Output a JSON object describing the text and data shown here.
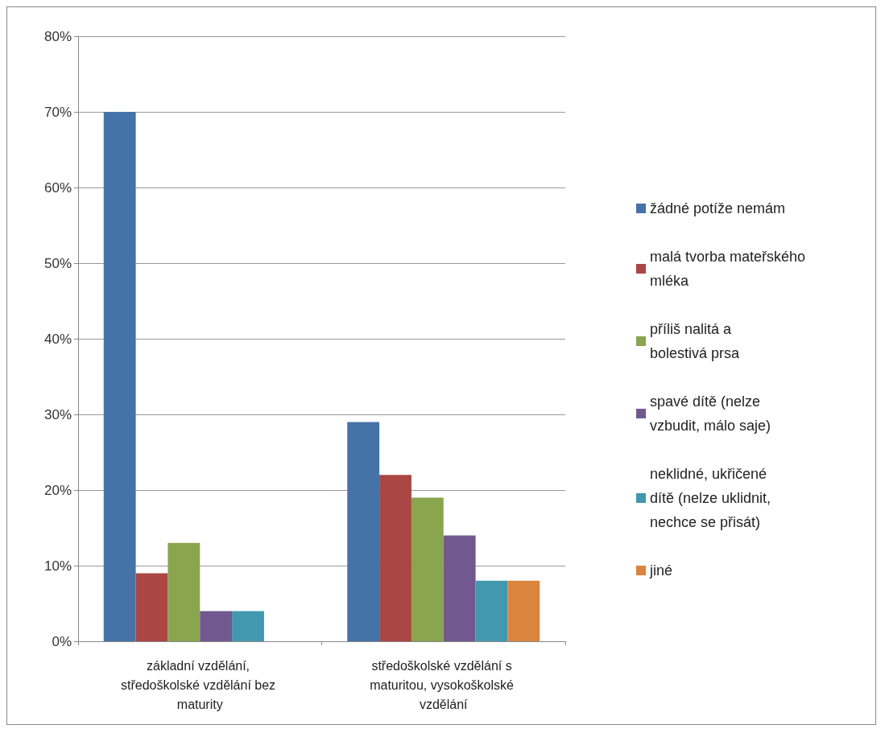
{
  "chart_data": {
    "type": "bar",
    "categories": [
      "základní vzdělání, středoškolské vzdělání bez maturity",
      "středoškolské vzdělání s maturitou, vysokoškolské vzdělání"
    ],
    "series": [
      {
        "name": "žádné potíže nemám",
        "color": "#4572a7",
        "values": [
          70,
          29
        ]
      },
      {
        "name": "malá tvorba mateřského mléka",
        "color": "#aa4643",
        "values": [
          9,
          22
        ]
      },
      {
        "name": "příliš nalitá a bolestivá prsa",
        "color": "#89a54e",
        "values": [
          13,
          19
        ]
      },
      {
        "name": "spavé dítě (nelze vzbudit, málo saje)",
        "color": "#71588f",
        "values": [
          4,
          14
        ]
      },
      {
        "name": "neklidné, ukřičené dítě (nelze uklidnit, nechce se přisát)",
        "color": "#4198af",
        "values": [
          4,
          8
        ]
      },
      {
        "name": "jiné",
        "color": "#db843d",
        "values": [
          null,
          8
        ]
      }
    ],
    "ylim": [
      0,
      80
    ],
    "yticks": [
      {
        "value": 0,
        "label": "0%"
      },
      {
        "value": 10,
        "label": "10%"
      },
      {
        "value": 20,
        "label": "20%"
      },
      {
        "value": 30,
        "label": "30%"
      },
      {
        "value": 40,
        "label": "40%"
      },
      {
        "value": 50,
        "label": "50%"
      },
      {
        "value": 60,
        "label": "60%"
      },
      {
        "value": 70,
        "label": "70%"
      },
      {
        "value": 80,
        "label": "80%"
      }
    ],
    "grid": "y",
    "legend": "right"
  }
}
